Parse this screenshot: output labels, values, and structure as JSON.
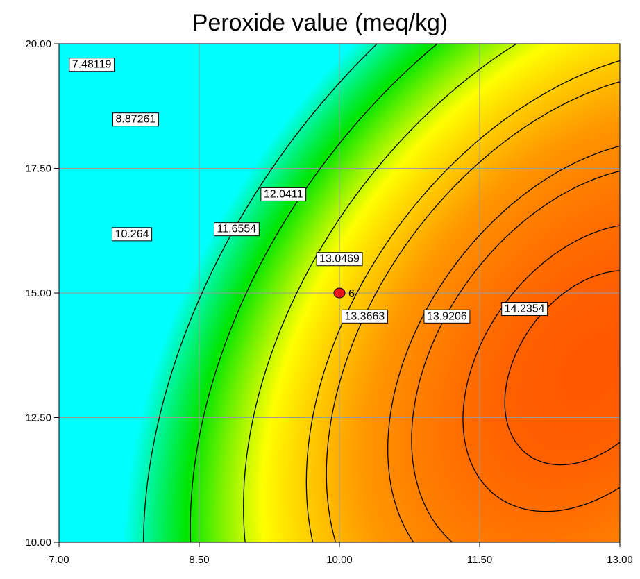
{
  "chart_data": {
    "type": "contour",
    "title": "Peroxide value (meq/kg)",
    "xlabel": "",
    "ylabel": "",
    "xlim": [
      7.0,
      13.0
    ],
    "ylim": [
      10.0,
      20.0
    ],
    "x_ticks": [
      "7.00",
      "8.50",
      "10.00",
      "11.50",
      "13.00"
    ],
    "y_ticks": [
      "10.00",
      "12.50",
      "15.00",
      "17.50",
      "20.00"
    ],
    "grid": true,
    "colormap": [
      "#00ffff",
      "#00e600",
      "#ffff00",
      "#ff9900",
      "#ff5500"
    ],
    "contour_levels": [
      {
        "value": 7.48119,
        "label": "7.48119",
        "label_at": [
          7.35,
          19.6
        ]
      },
      {
        "value": 8.87261,
        "label": "8.87261",
        "label_at": [
          7.82,
          18.5
        ]
      },
      {
        "value": 10.264,
        "label": "10.264",
        "label_at": [
          7.78,
          16.2
        ]
      },
      {
        "value": 11.6554,
        "label": "11.6554",
        "label_at": [
          8.9,
          16.3
        ]
      },
      {
        "value": 12.0411,
        "label": "12.0411",
        "label_at": [
          9.4,
          17.0
        ]
      },
      {
        "value": 13.0469,
        "label": "13.0469",
        "label_at": [
          10.0,
          15.7
        ]
      },
      {
        "value": 13.3663,
        "label": "13.3663",
        "label_at": [
          10.27,
          14.55
        ]
      },
      {
        "value": 13.9206,
        "label": "13.9206",
        "label_at": [
          11.15,
          14.55
        ]
      },
      {
        "value": 14.2354,
        "label": "14.2354",
        "label_at": [
          11.98,
          14.7
        ]
      }
    ],
    "design_points": [
      {
        "x": 10.0,
        "y": 15.0,
        "label": "6"
      }
    ]
  }
}
